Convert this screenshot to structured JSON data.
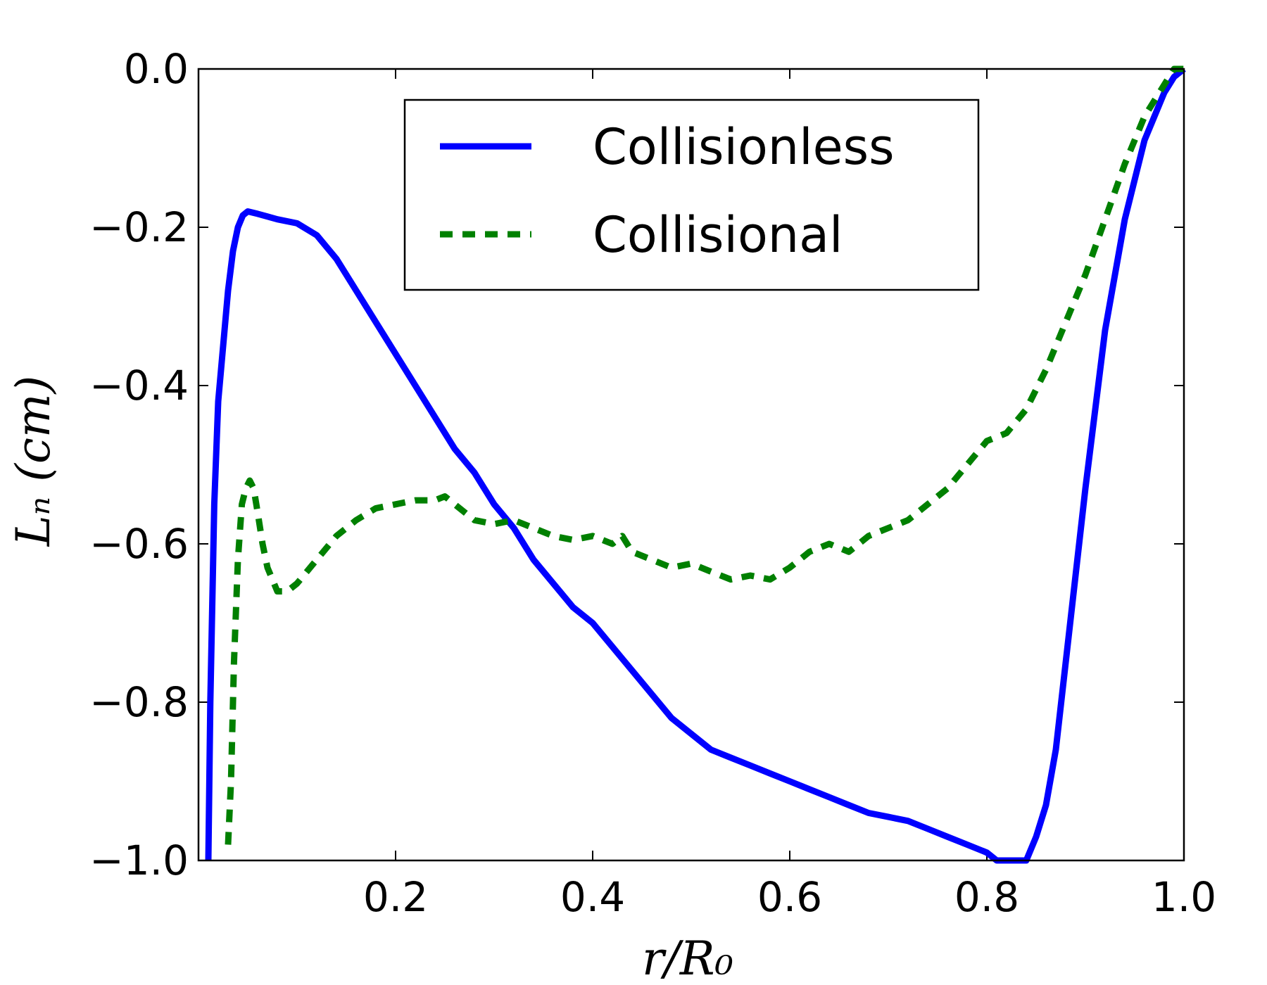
{
  "chart_data": {
    "type": "line",
    "title": "",
    "xlabel": "r/R₀",
    "ylabel": "Lₙ (cm)",
    "xlim": [
      0.0,
      1.0
    ],
    "ylim": [
      -1.0,
      0.0
    ],
    "x_ticks": [
      0.2,
      0.4,
      0.6,
      0.8,
      1.0
    ],
    "x_tick_labels": [
      "0.2",
      "0.4",
      "0.6",
      "0.8",
      "1.0"
    ],
    "y_ticks": [
      0.0,
      -0.2,
      -0.4,
      -0.6,
      -0.8,
      -1.0
    ],
    "y_tick_labels": [
      "0.0",
      "−0.2",
      "−0.4",
      "−0.6",
      "−0.8",
      "−1.0"
    ],
    "grid": false,
    "legend_position": "top-center",
    "series": [
      {
        "name": "Collisionless",
        "color": "#0000ff",
        "style": "solid",
        "x": [
          0.01,
          0.012,
          0.016,
          0.02,
          0.025,
          0.03,
          0.035,
          0.04,
          0.045,
          0.05,
          0.06,
          0.08,
          0.1,
          0.12,
          0.14,
          0.16,
          0.18,
          0.2,
          0.22,
          0.24,
          0.26,
          0.28,
          0.3,
          0.32,
          0.34,
          0.36,
          0.38,
          0.4,
          0.42,
          0.44,
          0.46,
          0.48,
          0.5,
          0.52,
          0.54,
          0.56,
          0.58,
          0.6,
          0.62,
          0.64,
          0.66,
          0.68,
          0.7,
          0.72,
          0.74,
          0.76,
          0.78,
          0.8,
          0.81,
          0.815,
          0.83,
          0.84,
          0.85,
          0.86,
          0.87,
          0.88,
          0.9,
          0.92,
          0.94,
          0.96,
          0.98,
          0.99,
          1.0
        ],
        "y": [
          -1.0,
          -0.8,
          -0.55,
          -0.42,
          -0.35,
          -0.28,
          -0.23,
          -0.2,
          -0.185,
          -0.18,
          -0.183,
          -0.19,
          -0.195,
          -0.21,
          -0.24,
          -0.28,
          -0.32,
          -0.36,
          -0.4,
          -0.44,
          -0.48,
          -0.51,
          -0.55,
          -0.58,
          -0.62,
          -0.65,
          -0.68,
          -0.7,
          -0.73,
          -0.76,
          -0.79,
          -0.82,
          -0.84,
          -0.86,
          -0.87,
          -0.88,
          -0.89,
          -0.9,
          -0.91,
          -0.92,
          -0.93,
          -0.94,
          -0.945,
          -0.95,
          -0.96,
          -0.97,
          -0.98,
          -0.99,
          -1.0,
          -1.0,
          -1.0,
          -1.0,
          -0.97,
          -0.93,
          -0.86,
          -0.75,
          -0.53,
          -0.33,
          -0.19,
          -0.09,
          -0.03,
          -0.01,
          0.0
        ]
      },
      {
        "name": "Collisional",
        "color": "#008000",
        "style": "dotted",
        "x": [
          0.03,
          0.033,
          0.036,
          0.04,
          0.044,
          0.048,
          0.052,
          0.056,
          0.06,
          0.065,
          0.07,
          0.08,
          0.09,
          0.1,
          0.12,
          0.14,
          0.16,
          0.18,
          0.2,
          0.22,
          0.24,
          0.25,
          0.26,
          0.28,
          0.3,
          0.32,
          0.34,
          0.36,
          0.38,
          0.4,
          0.41,
          0.42,
          0.43,
          0.44,
          0.46,
          0.48,
          0.5,
          0.52,
          0.54,
          0.56,
          0.58,
          0.6,
          0.62,
          0.64,
          0.65,
          0.66,
          0.68,
          0.7,
          0.72,
          0.74,
          0.76,
          0.78,
          0.8,
          0.82,
          0.84,
          0.86,
          0.88,
          0.9,
          0.92,
          0.94,
          0.96,
          0.98,
          0.99,
          1.0
        ],
        "y": [
          -0.98,
          -0.9,
          -0.75,
          -0.62,
          -0.55,
          -0.53,
          -0.52,
          -0.53,
          -0.56,
          -0.6,
          -0.63,
          -0.66,
          -0.66,
          -0.65,
          -0.62,
          -0.59,
          -0.57,
          -0.555,
          -0.55,
          -0.545,
          -0.545,
          -0.54,
          -0.55,
          -0.57,
          -0.575,
          -0.57,
          -0.58,
          -0.59,
          -0.595,
          -0.59,
          -0.595,
          -0.6,
          -0.59,
          -0.61,
          -0.62,
          -0.63,
          -0.625,
          -0.635,
          -0.645,
          -0.64,
          -0.645,
          -0.63,
          -0.61,
          -0.6,
          -0.605,
          -0.61,
          -0.59,
          -0.58,
          -0.57,
          -0.55,
          -0.53,
          -0.5,
          -0.47,
          -0.46,
          -0.43,
          -0.38,
          -0.32,
          -0.26,
          -0.19,
          -0.12,
          -0.06,
          -0.02,
          0.0,
          0.0
        ]
      }
    ]
  }
}
